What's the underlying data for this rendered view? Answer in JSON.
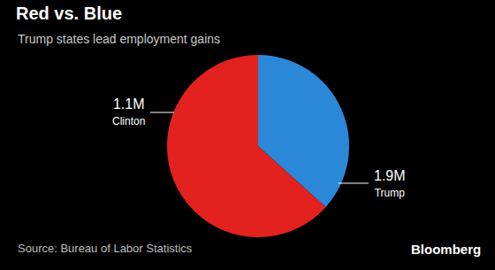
{
  "chart_data": {
    "type": "pie",
    "title": "Red vs. Blue",
    "subtitle": "Trump states lead employment gains",
    "categories": [
      "Clinton",
      "Trump"
    ],
    "values": [
      1100000,
      1900000
    ],
    "value_labels": [
      "1.1M",
      "1.9M"
    ],
    "colors": [
      "#2b88d8",
      "#e3211e"
    ],
    "data_labels": true,
    "annotations": [
      "Source: Bureau of Labor Statistics",
      "Bloomberg"
    ]
  }
}
